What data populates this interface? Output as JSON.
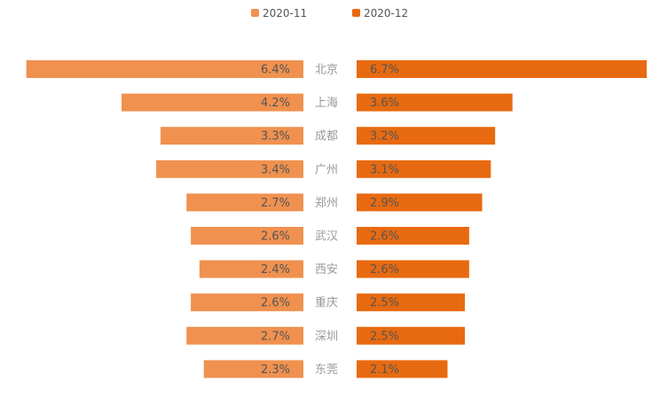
{
  "chart_data": {
    "type": "bar",
    "layout": "butterfly",
    "categories": [
      "北京",
      "上海",
      "成都",
      "广州",
      "郑州",
      "武汉",
      "西安",
      "重庆",
      "深圳",
      "东莞"
    ],
    "series": [
      {
        "name": "2020-11",
        "values": [
          6.4,
          4.2,
          3.3,
          3.4,
          2.7,
          2.6,
          2.4,
          2.6,
          2.7,
          2.3
        ],
        "labels": [
          "6.4%",
          "4.2%",
          "3.3%",
          "3.4%",
          "2.7%",
          "2.6%",
          "2.4%",
          "2.6%",
          "2.7%",
          "2.3%"
        ],
        "color": "#f0914f",
        "side": "left"
      },
      {
        "name": "2020-12",
        "values": [
          6.7,
          3.6,
          3.2,
          3.1,
          2.9,
          2.6,
          2.6,
          2.5,
          2.5,
          2.1
        ],
        "labels": [
          "6.7%",
          "3.6%",
          "3.2%",
          "3.1%",
          "2.9%",
          "2.6%",
          "2.6%",
          "2.5%",
          "2.5%",
          "2.1%"
        ],
        "color": "#e86a10",
        "side": "right"
      }
    ],
    "title": "",
    "xlabel": "",
    "ylabel": "",
    "legend_position": "top-center",
    "grid": false,
    "axis_visible": false
  }
}
